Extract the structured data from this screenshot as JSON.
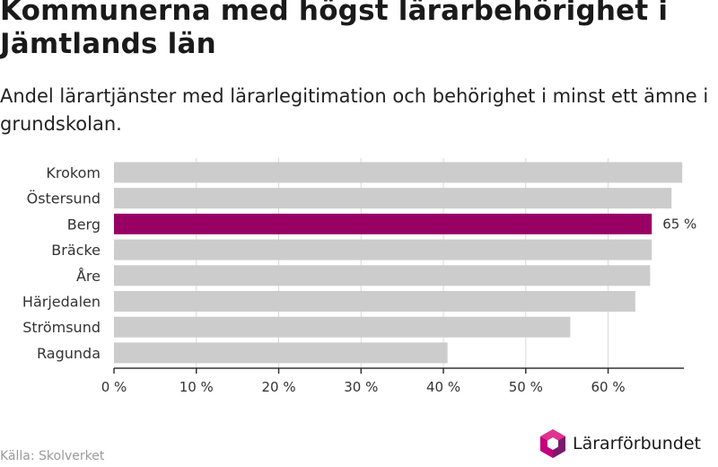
{
  "header": {
    "title": "Kommunerna med högst lärarbehörighet i Jämtlands län",
    "subtitle": "Andel lärartjänster med lärarlegitimation och behörighet i minst ett ämne i grundskolan."
  },
  "footer": {
    "source": "Källa: Skolverket",
    "logo_text": "Lärarförbundet"
  },
  "colors": {
    "bar_default": "#cccccc",
    "bar_highlight": "#990066",
    "grid": "#d9d9d9",
    "axis": "#333333",
    "logo_a": "#c4007a",
    "logo_b": "#7a1a6a"
  },
  "chart_data": {
    "type": "bar",
    "orientation": "horizontal",
    "categories": [
      "Krokom",
      "Östersund",
      "Berg",
      "Bräcke",
      "Åre",
      "Härjedalen",
      "Strömsund",
      "Ragunda"
    ],
    "values": [
      69,
      67.7,
      65.3,
      65.3,
      65.1,
      63.3,
      55.4,
      40.5
    ],
    "highlight_index": 2,
    "data_labels": [
      {
        "index": 2,
        "text": "65 %"
      }
    ],
    "xlim": [
      0,
      69.2
    ],
    "xticks": [
      0,
      10,
      20,
      30,
      40,
      50,
      60
    ],
    "xtick_labels": [
      "0 %",
      "10 %",
      "20 %",
      "30 %",
      "40 %",
      "50 %",
      "60 %"
    ],
    "grid": true
  }
}
